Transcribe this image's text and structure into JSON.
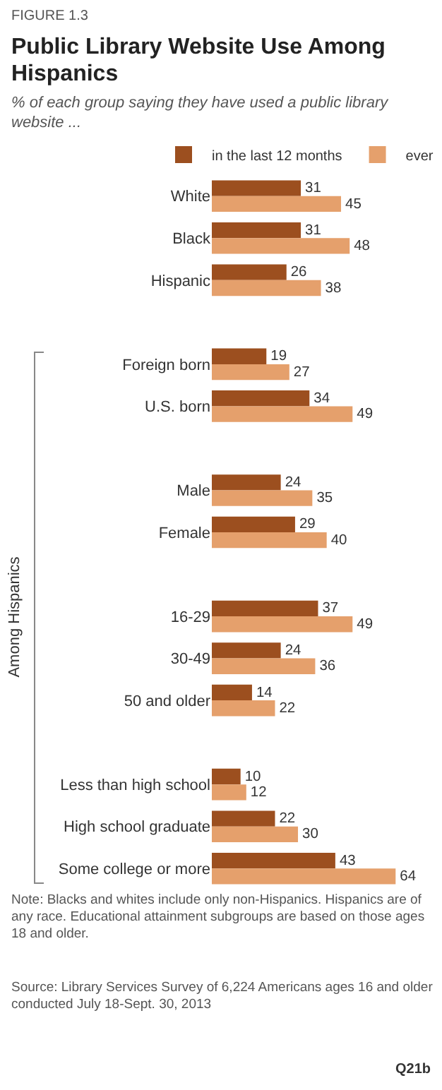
{
  "chart_data": {
    "type": "bar",
    "orientation": "horizontal",
    "title": "Public Library Website Use Among Hispanics",
    "subtitle": "% of each group saying they have used a public library website ...",
    "categories": [
      "White",
      "Black",
      "Hispanic",
      null,
      "Foreign born",
      "U.S. born",
      null,
      "Male",
      "Female",
      null,
      "16-29",
      "30-49",
      "50 and older",
      null,
      "Less than high school",
      "High school graduate",
      "Some college or more"
    ],
    "series": [
      {
        "name": "in the last 12 months",
        "color": "#9c4f1f",
        "values": [
          31,
          31,
          26,
          null,
          19,
          34,
          null,
          24,
          29,
          null,
          37,
          24,
          14,
          null,
          10,
          22,
          43
        ]
      },
      {
        "name": "ever",
        "color": "#e5a06c",
        "values": [
          45,
          48,
          38,
          null,
          27,
          49,
          null,
          35,
          40,
          null,
          49,
          36,
          22,
          null,
          12,
          30,
          64
        ]
      }
    ],
    "data_labels": true,
    "legend": "top",
    "annotations": [
      "FIGURE 1.3",
      "Among Hispanics",
      "Note: Blacks and whites include only non-Hispanics. Hispanics are of any race. Educational attainment subgroups are based on those ages 18 and older.",
      "Source: Library Services Survey of 6,224 Americans ages 16 and older conducted July 18-Sept. 30, 2013",
      "Q21b"
    ]
  }
}
